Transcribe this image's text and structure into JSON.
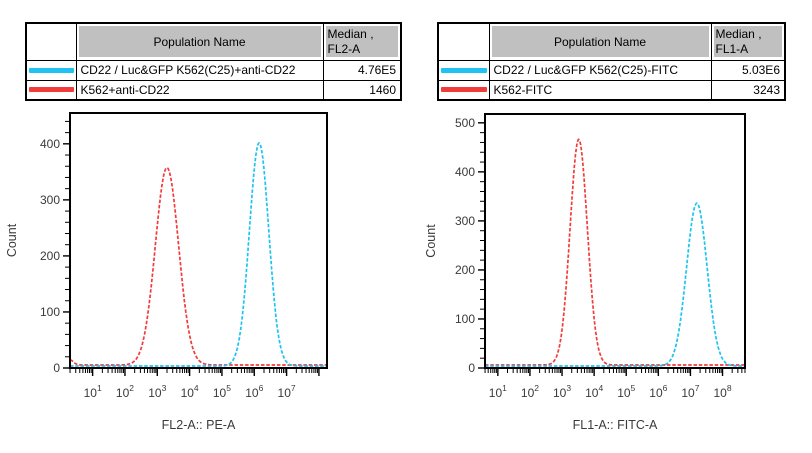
{
  "colors": {
    "cyan_series": "#1fc3f0",
    "red_series": "#f23b3b",
    "table_header_bg": "#c0c0c0",
    "axis": "#000000"
  },
  "tables": [
    {
      "header": {
        "population": "Population Name",
        "median_line1": "Median ,",
        "median_line2": "FL2-A"
      },
      "rows": [
        {
          "name": "CD22 / Luc&GFP K562(C25)+anti-CD22",
          "median": "4.76E5",
          "color": "#1fc3f0"
        },
        {
          "name": "K562+anti-CD22",
          "median": "1460",
          "color": "#f23b3b"
        }
      ]
    },
    {
      "header": {
        "population": "Population Name",
        "median_line1": "Median ,",
        "median_line2": "FL1-A"
      },
      "rows": [
        {
          "name": "CD22 / Luc&GFP K562(C25)-FITC",
          "median": "5.03E6",
          "color": "#1fc3f0"
        },
        {
          "name": "K562-FITC",
          "median": "3243",
          "color": "#f23b3b"
        }
      ]
    }
  ],
  "chart_data": [
    {
      "type": "line",
      "subtype": "flow-cytometry-histogram",
      "xlabel": "FL2-A:: PE-A",
      "ylabel": "Count",
      "x_scale": "log10",
      "x_tick_exponents": [
        1,
        2,
        3,
        4,
        5,
        6,
        7
      ],
      "x_range_decades": [
        0.3,
        8.25
      ],
      "ylim": [
        0,
        455
      ],
      "y_ticks": [
        0,
        100,
        200,
        300,
        400
      ],
      "y_minor_step": 20,
      "grid": false,
      "legend_position": "table-above",
      "series": [
        {
          "name": "K562+anti-CD22",
          "color": "#f23b3b",
          "median": "1460",
          "peak_log10_center": 3.3,
          "peak_log10_sigma": 0.36,
          "peak_height": 352,
          "edge_height": 9
        },
        {
          "name": "CD22 / Luc&GFP K562(C25)+anti-CD22",
          "color": "#1fc3f0",
          "median": "4.76E5",
          "peak_log10_center": 6.15,
          "peak_log10_sigma": 0.3,
          "peak_height": 398,
          "edge_height": 0
        }
      ]
    },
    {
      "type": "line",
      "subtype": "flow-cytometry-histogram",
      "xlabel": "FL1-A:: FITC-A",
      "ylabel": "Count",
      "x_scale": "log10",
      "x_tick_exponents": [
        1,
        2,
        3,
        4,
        5,
        6,
        7,
        8
      ],
      "x_range_decades": [
        0.6,
        8.7
      ],
      "ylim": [
        0,
        518
      ],
      "y_ticks": [
        0,
        100,
        200,
        300,
        400,
        500
      ],
      "y_minor_step": 20,
      "grid": false,
      "legend_position": "table-above",
      "series": [
        {
          "name": "K562-FITC",
          "color": "#f23b3b",
          "median": "3243",
          "peak_log10_center": 3.52,
          "peak_log10_sigma": 0.27,
          "peak_height": 460,
          "edge_height": 0
        },
        {
          "name": "CD22 / Luc&GFP K562(C25)-FITC",
          "color": "#1fc3f0",
          "median": "5.03E6",
          "peak_log10_center": 7.2,
          "peak_log10_sigma": 0.32,
          "peak_height": 332,
          "edge_height": 0
        }
      ]
    }
  ]
}
